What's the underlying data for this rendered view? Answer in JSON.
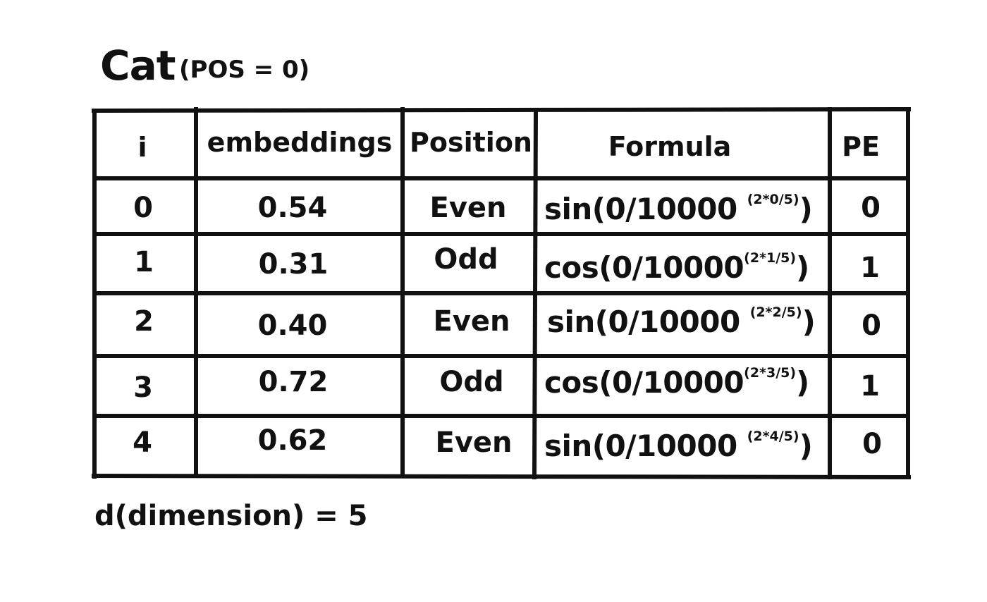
{
  "title": {
    "word": "Cat",
    "position": "(POS = 0)"
  },
  "table": {
    "headers": {
      "i": "i",
      "embeddings": "embeddings",
      "position": "Position",
      "formula": "Formula",
      "pe": "PE"
    },
    "rows": [
      {
        "i": "0",
        "embedding": "0.54",
        "position": "Even",
        "fn": "sin(0/10000",
        "exp": "(2*0/5)",
        "close": ")",
        "pe": "0"
      },
      {
        "i": "1",
        "embedding": "0.31",
        "position": "Odd",
        "fn": "cos(0/10000",
        "exp": "(2*1/5)",
        "close": ")",
        "pe": "1"
      },
      {
        "i": "2",
        "embedding": "0.40",
        "position": "Even",
        "fn": "sin(0/10000",
        "exp": "(2*2/5)",
        "close": ")",
        "pe": "0"
      },
      {
        "i": "3",
        "embedding": "0.72",
        "position": "Odd",
        "fn": "cos(0/10000",
        "exp": "(2*3/5)",
        "close": ")",
        "pe": "1"
      },
      {
        "i": "4",
        "embedding": "0.62",
        "position": "Even",
        "fn": "sin(0/10000",
        "exp": "(2*4/5)",
        "close": ")",
        "pe": "0"
      }
    ]
  },
  "footer": "d(dimension) = 5"
}
